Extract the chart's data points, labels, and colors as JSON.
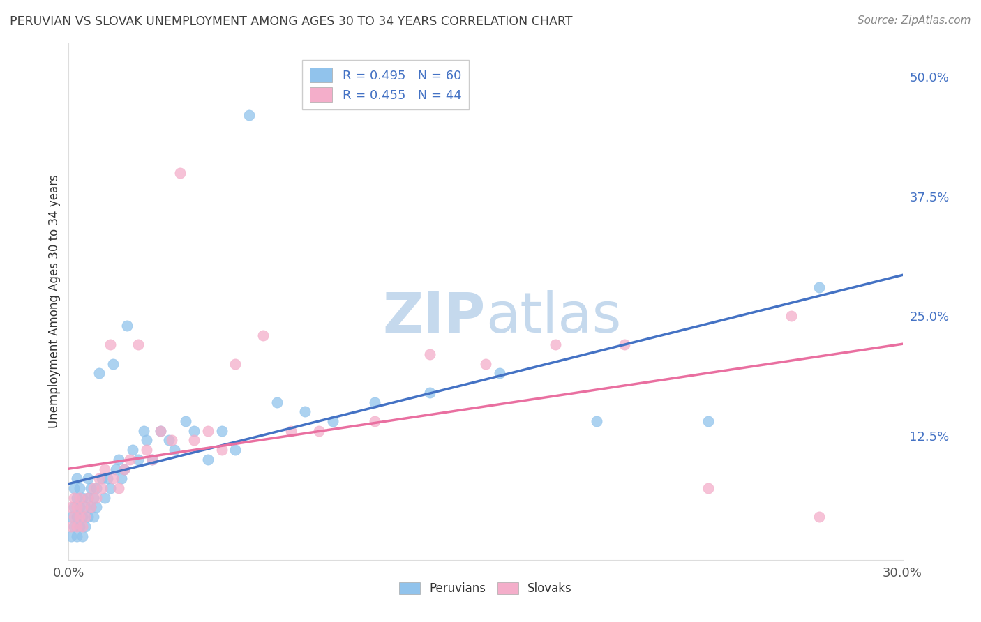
{
  "title": "PERUVIAN VS SLOVAK UNEMPLOYMENT AMONG AGES 30 TO 34 YEARS CORRELATION CHART",
  "source": "Source: ZipAtlas.com",
  "ylabel": "Unemployment Among Ages 30 to 34 years",
  "xlim": [
    0.0,
    0.3
  ],
  "ylim": [
    -0.005,
    0.535
  ],
  "ytick_vals": [
    0.0,
    0.125,
    0.25,
    0.375,
    0.5
  ],
  "ytick_labels": [
    "",
    "12.5%",
    "25.0%",
    "37.5%",
    "50.0%"
  ],
  "peruvian_color": "#91C3EC",
  "slovak_color": "#F4AECA",
  "peruvian_line_color": "#4472C4",
  "slovak_line_color": "#E96FA0",
  "R_peruvian": 0.495,
  "N_peruvian": 60,
  "R_slovak": 0.455,
  "N_slovak": 44,
  "watermark_color": "#C5D9ED",
  "background_color": "#FFFFFF",
  "grid_color": "#CCCCCC",
  "title_color": "#404040",
  "source_color": "#888888",
  "ytick_color": "#4472C4",
  "peruvian_x": [
    0.001,
    0.001,
    0.002,
    0.002,
    0.002,
    0.003,
    0.003,
    0.003,
    0.003,
    0.004,
    0.004,
    0.004,
    0.005,
    0.005,
    0.005,
    0.006,
    0.006,
    0.007,
    0.007,
    0.007,
    0.008,
    0.008,
    0.009,
    0.009,
    0.01,
    0.01,
    0.011,
    0.012,
    0.013,
    0.014,
    0.015,
    0.016,
    0.017,
    0.018,
    0.019,
    0.02,
    0.021,
    0.023,
    0.025,
    0.027,
    0.028,
    0.03,
    0.033,
    0.036,
    0.038,
    0.042,
    0.045,
    0.05,
    0.055,
    0.06,
    0.065,
    0.075,
    0.085,
    0.095,
    0.11,
    0.13,
    0.155,
    0.19,
    0.23,
    0.27
  ],
  "peruvian_y": [
    0.02,
    0.04,
    0.03,
    0.05,
    0.07,
    0.02,
    0.04,
    0.06,
    0.08,
    0.03,
    0.05,
    0.07,
    0.02,
    0.04,
    0.06,
    0.03,
    0.05,
    0.04,
    0.06,
    0.08,
    0.05,
    0.07,
    0.04,
    0.06,
    0.05,
    0.07,
    0.19,
    0.08,
    0.06,
    0.08,
    0.07,
    0.2,
    0.09,
    0.1,
    0.08,
    0.09,
    0.24,
    0.11,
    0.1,
    0.13,
    0.12,
    0.1,
    0.13,
    0.12,
    0.11,
    0.14,
    0.13,
    0.1,
    0.13,
    0.11,
    0.46,
    0.16,
    0.15,
    0.14,
    0.16,
    0.17,
    0.19,
    0.14,
    0.14,
    0.28
  ],
  "slovak_x": [
    0.001,
    0.001,
    0.002,
    0.002,
    0.003,
    0.003,
    0.004,
    0.004,
    0.005,
    0.005,
    0.006,
    0.007,
    0.008,
    0.009,
    0.01,
    0.011,
    0.012,
    0.013,
    0.015,
    0.016,
    0.018,
    0.02,
    0.022,
    0.025,
    0.028,
    0.03,
    0.033,
    0.037,
    0.04,
    0.045,
    0.05,
    0.055,
    0.06,
    0.07,
    0.08,
    0.09,
    0.11,
    0.13,
    0.15,
    0.175,
    0.2,
    0.23,
    0.26,
    0.27
  ],
  "slovak_y": [
    0.03,
    0.05,
    0.04,
    0.06,
    0.03,
    0.05,
    0.04,
    0.06,
    0.03,
    0.05,
    0.04,
    0.06,
    0.05,
    0.07,
    0.06,
    0.08,
    0.07,
    0.09,
    0.22,
    0.08,
    0.07,
    0.09,
    0.1,
    0.22,
    0.11,
    0.1,
    0.13,
    0.12,
    0.4,
    0.12,
    0.13,
    0.11,
    0.2,
    0.23,
    0.13,
    0.13,
    0.14,
    0.21,
    0.2,
    0.22,
    0.22,
    0.07,
    0.25,
    0.04
  ]
}
